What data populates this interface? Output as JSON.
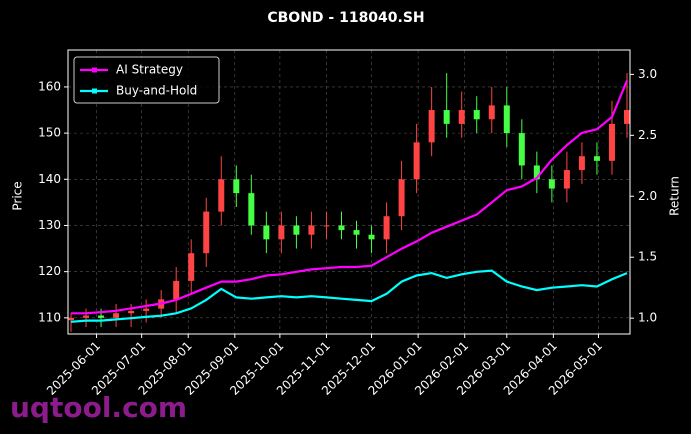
{
  "chart_data": {
    "type": "candlestick",
    "title": "CBOND - 118040.SH",
    "ylabel": "Price",
    "y2label": "Return",
    "watermark": "uqtool.com",
    "x": [
      "2025-05-15",
      "2025-05-25",
      "2025-06-04",
      "2025-06-14",
      "2025-06-24",
      "2025-07-04",
      "2025-07-14",
      "2025-07-24",
      "2025-08-03",
      "2025-08-13",
      "2025-08-23",
      "2025-09-02",
      "2025-09-12",
      "2025-09-22",
      "2025-10-02",
      "2025-10-12",
      "2025-10-22",
      "2025-11-01",
      "2025-11-11",
      "2025-11-21",
      "2025-12-01",
      "2025-12-11",
      "2025-12-21",
      "2025-12-31",
      "2026-01-10",
      "2026-01-20",
      "2026-01-30",
      "2026-02-09",
      "2026-02-19",
      "2026-03-01",
      "2026-03-11",
      "2026-03-21",
      "2026-03-31",
      "2026-04-10",
      "2026-04-20",
      "2026-04-30",
      "2026-05-10",
      "2026-05-20"
    ],
    "open": [
      109.5,
      110,
      110.5,
      110,
      111,
      111.5,
      112,
      114,
      118,
      124,
      133,
      140,
      137,
      130,
      127,
      130,
      128,
      130,
      130,
      129,
      128,
      127,
      132,
      140,
      148,
      155,
      152,
      155,
      153,
      156,
      150,
      143,
      140,
      138,
      142,
      145,
      144,
      152
    ],
    "high": [
      111,
      112,
      112,
      113,
      113,
      114,
      116,
      121,
      127,
      136,
      145,
      143,
      141,
      133,
      133,
      132,
      133,
      133,
      133,
      131,
      130,
      135,
      144,
      152,
      160,
      163,
      159,
      158,
      160,
      160,
      153,
      146,
      143,
      146,
      148,
      148,
      157,
      163
    ],
    "low": [
      107,
      108,
      108,
      108,
      108,
      109,
      110,
      111,
      115,
      121,
      130,
      134,
      128,
      124,
      124,
      125,
      125,
      127,
      127,
      125,
      124,
      124,
      129,
      137,
      145,
      149,
      149,
      150,
      150,
      147,
      140,
      137,
      135,
      135,
      139,
      141,
      141,
      149
    ],
    "close": [
      110,
      110.5,
      110,
      111,
      111.5,
      112,
      114,
      118,
      124,
      133,
      140,
      137,
      130,
      127,
      130,
      128,
      130,
      130,
      129,
      128,
      127,
      132,
      140,
      148,
      155,
      152,
      155,
      153,
      156,
      150,
      143,
      140,
      138,
      142,
      145,
      144,
      152,
      155
    ],
    "up_color": "#ff4444",
    "down_color": "#44ff44",
    "series": [
      {
        "name": "AI Strategy",
        "color": "#ff00ff",
        "axis": "y2",
        "values": [
          1.04,
          1.04,
          1.05,
          1.06,
          1.08,
          1.1,
          1.12,
          1.15,
          1.2,
          1.25,
          1.3,
          1.3,
          1.32,
          1.35,
          1.36,
          1.38,
          1.4,
          1.41,
          1.42,
          1.42,
          1.43,
          1.5,
          1.57,
          1.63,
          1.7,
          1.75,
          1.8,
          1.85,
          1.95,
          2.05,
          2.08,
          2.15,
          2.3,
          2.42,
          2.52,
          2.55,
          2.65,
          2.95
        ]
      },
      {
        "name": "Buy-and-Hold",
        "color": "#00ffff",
        "axis": "y2",
        "values": [
          0.97,
          0.98,
          0.98,
          0.99,
          1.0,
          1.01,
          1.02,
          1.04,
          1.08,
          1.15,
          1.24,
          1.17,
          1.16,
          1.17,
          1.18,
          1.17,
          1.18,
          1.17,
          1.16,
          1.15,
          1.14,
          1.2,
          1.3,
          1.35,
          1.37,
          1.33,
          1.36,
          1.38,
          1.39,
          1.3,
          1.26,
          1.23,
          1.25,
          1.26,
          1.27,
          1.26,
          1.32,
          1.37
        ]
      }
    ],
    "xlim": [
      "2025-05-13",
      "2026-05-22"
    ],
    "xticks": [
      "2025-06-01",
      "2025-07-01",
      "2025-08-01",
      "2025-09-01",
      "2025-10-01",
      "2025-11-01",
      "2025-12-01",
      "2026-01-01",
      "2026-02-01",
      "2026-03-01",
      "2026-04-01",
      "2026-05-01"
    ],
    "ylim": [
      106.5,
      168
    ],
    "yticks": [
      110,
      120,
      130,
      140,
      150,
      160
    ],
    "y2lim": [
      0.87,
      3.2
    ],
    "y2ticks": [
      {
        "value": 1,
        "label": "1.0"
      },
      1.5,
      {
        "value": 2,
        "label": "2.0"
      },
      2.5,
      {
        "value": 3,
        "label": "3.0"
      }
    ],
    "grid": true,
    "legend": "upper left"
  }
}
